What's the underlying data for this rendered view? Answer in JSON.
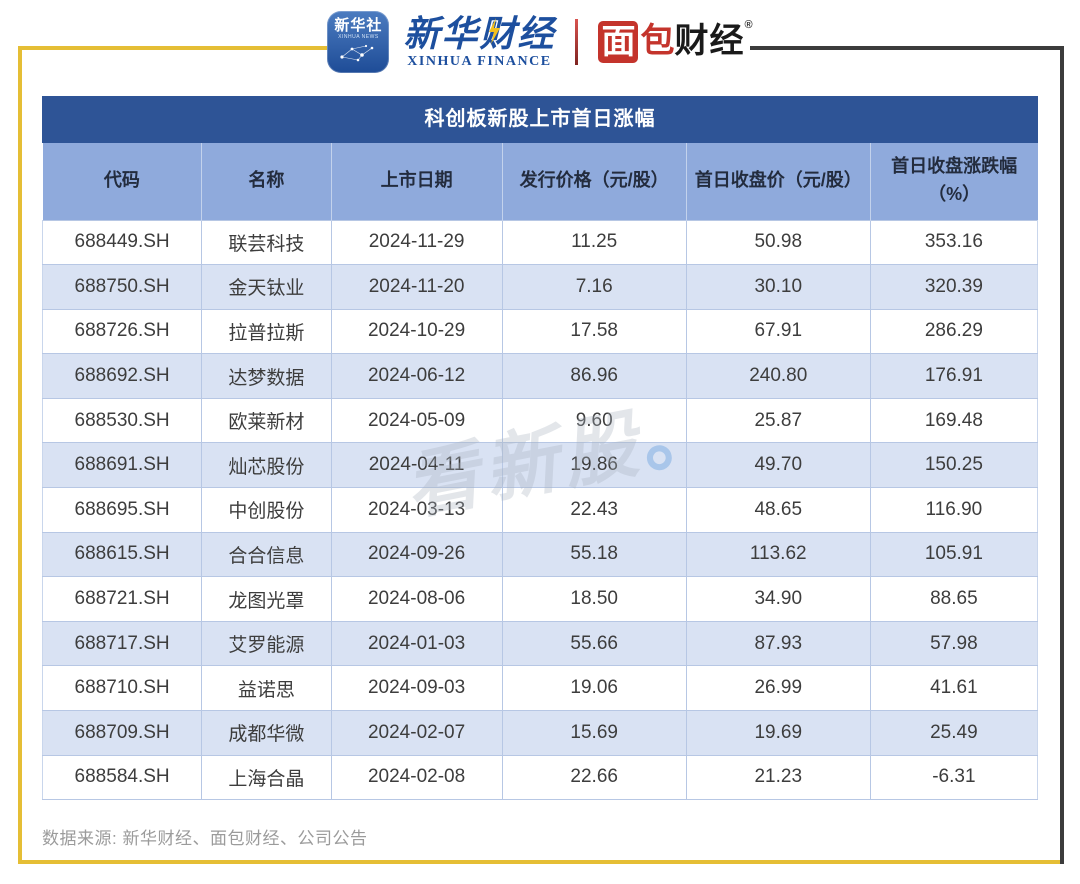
{
  "brand_header": {
    "xinhua_news_badge": {
      "title": "新华社",
      "subtitle": "XINHUA NEWS"
    },
    "xinhua_finance_logo": {
      "cn": "新华财经",
      "en": "XINHUA FINANCE"
    },
    "mianbao_logo": {
      "char1": "面",
      "char2": "包",
      "part_dark": "财经",
      "registered_mark": "®"
    }
  },
  "chart_data": {
    "type": "table",
    "title": "科创板新股上市首日涨幅",
    "columns": [
      "代码",
      "名称",
      "上市日期",
      "发行价格（元/股）",
      "首日收盘价（元/股）",
      "首日收盘涨跌幅（%）"
    ],
    "rows": [
      [
        "688449.SH",
        "联芸科技",
        "2024-11-29",
        "11.25",
        "50.98",
        "353.16"
      ],
      [
        "688750.SH",
        "金天钛业",
        "2024-11-20",
        "7.16",
        "30.10",
        "320.39"
      ],
      [
        "688726.SH",
        "拉普拉斯",
        "2024-10-29",
        "17.58",
        "67.91",
        "286.29"
      ],
      [
        "688692.SH",
        "达梦数据",
        "2024-06-12",
        "86.96",
        "240.80",
        "176.91"
      ],
      [
        "688530.SH",
        "欧莱新材",
        "2024-05-09",
        "9.60",
        "25.87",
        "169.48"
      ],
      [
        "688691.SH",
        "灿芯股份",
        "2024-04-11",
        "19.86",
        "49.70",
        "150.25"
      ],
      [
        "688695.SH",
        "中创股份",
        "2024-03-13",
        "22.43",
        "48.65",
        "116.90"
      ],
      [
        "688615.SH",
        "合合信息",
        "2024-09-26",
        "55.18",
        "113.62",
        "105.91"
      ],
      [
        "688721.SH",
        "龙图光罩",
        "2024-08-06",
        "18.50",
        "34.90",
        "88.65"
      ],
      [
        "688717.SH",
        "艾罗能源",
        "2024-01-03",
        "55.66",
        "87.93",
        "57.98"
      ],
      [
        "688710.SH",
        "益诺思",
        "2024-09-03",
        "19.06",
        "26.99",
        "41.61"
      ],
      [
        "688709.SH",
        "成都华微",
        "2024-02-07",
        "15.69",
        "19.69",
        "25.49"
      ],
      [
        "688584.SH",
        "上海合晶",
        "2024-02-08",
        "22.66",
        "21.23",
        "-6.31"
      ]
    ]
  },
  "watermark": {
    "text": "看新股",
    "dot": "。"
  },
  "footer": {
    "source_note": "数据来源: 新华财经、面包财经、公司公告"
  },
  "colors": {
    "title_bar_blue": "#2E5496",
    "header_row_blue": "#8FAADC",
    "row_stripe_blue": "#D9E2F3",
    "grid_line_blue": "#B7C7E4",
    "frame_gold": "#E5BE35",
    "frame_dark": "#3C3C3C",
    "brand_red": "#C4342C",
    "brand_blue": "#1D4F9E",
    "lightning_yellow": "#F3C01C"
  }
}
